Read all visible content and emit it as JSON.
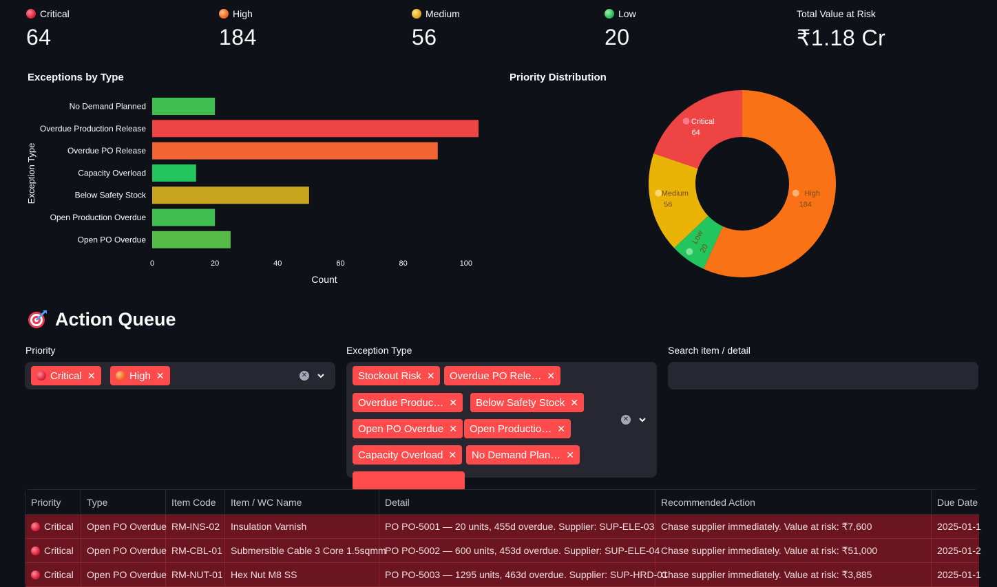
{
  "metrics": [
    {
      "label": "Critical",
      "value": "64",
      "dot": "red"
    },
    {
      "label": "High",
      "value": "184",
      "dot": "orange"
    },
    {
      "label": "Medium",
      "value": "56",
      "dot": "yellow"
    },
    {
      "label": "Low",
      "value": "20",
      "dot": "green"
    },
    {
      "label": "Total Value at Risk",
      "value": "₹1.18 Cr",
      "dot": ""
    }
  ],
  "bar_chart_title": "Exceptions by Type",
  "donut_chart_title": "Priority Distribution",
  "chart_data": [
    {
      "type": "bar",
      "orientation": "horizontal",
      "title": "Exceptions by Type",
      "xlabel": "Count",
      "ylabel": "Exception Type",
      "categories": [
        "No Demand Planned",
        "Overdue Production Release",
        "Overdue PO Release",
        "Capacity Overload",
        "Below Safety Stock",
        "Open Production Overdue",
        "Open PO Overdue"
      ],
      "values": [
        20,
        104,
        91,
        14,
        50,
        20,
        25
      ],
      "colors": [
        "#3fbf4f",
        "#ef4444",
        "#f26433",
        "#22c55e",
        "#c9a41e",
        "#3fbf4f",
        "#55bb44"
      ],
      "xlim": [
        0,
        104
      ],
      "xticks": [
        0,
        20,
        40,
        60,
        80,
        100
      ],
      "grid": false
    },
    {
      "type": "pie",
      "hole": 0.5,
      "title": "Priority Distribution",
      "labels": [
        "High",
        "Low",
        "Medium",
        "Critical"
      ],
      "values": [
        184,
        20,
        56,
        64
      ],
      "colors": [
        "#f97316",
        "#22c55e",
        "#eab308",
        "#ef4444"
      ]
    }
  ],
  "action_queue": {
    "title": "Action Queue",
    "icon": "target-icon",
    "priority_label": "Priority",
    "priority_chips": [
      "Critical",
      "High"
    ],
    "exception_label": "Exception Type",
    "exception_chips": [
      "Stockout Risk",
      "Overdue PO Rele…",
      "Overdue Produc…",
      "Below Safety Stock",
      "Open PO Overdue",
      "Open Productio…",
      "Capacity Overload",
      "No Demand Plan…"
    ],
    "search_label": "Search item / detail",
    "search_value": ""
  },
  "table": {
    "columns": [
      "Priority",
      "Type",
      "Item Code",
      "Item / WC Name",
      "Detail",
      "Recommended Action",
      "Due Date"
    ],
    "rows": [
      [
        "Critical",
        "Open PO Overdue",
        "RM-INS-02",
        "Insulation Varnish",
        "PO PO-5001 — 20 units, 455d overdue. Supplier: SUP-ELE-03",
        "Chase supplier immediately. Value at risk: ₹7,600",
        "2025-01-1"
      ],
      [
        "Critical",
        "Open PO Overdue",
        "RM-CBL-01",
        "Submersible Cable 3 Core 1.5sqmm",
        "PO PO-5002 — 600 units, 453d overdue. Supplier: SUP-ELE-04",
        "Chase supplier immediately. Value at risk: ₹51,000",
        "2025-01-2"
      ],
      [
        "Critical",
        "Open PO Overdue",
        "RM-NUT-01",
        "Hex Nut M8 SS",
        "PO PO-5003 — 1295 units, 463d overdue. Supplier: SUP-HRD-01",
        "Chase supplier immediately. Value at risk: ₹3,885",
        "2025-01-1"
      ]
    ]
  }
}
